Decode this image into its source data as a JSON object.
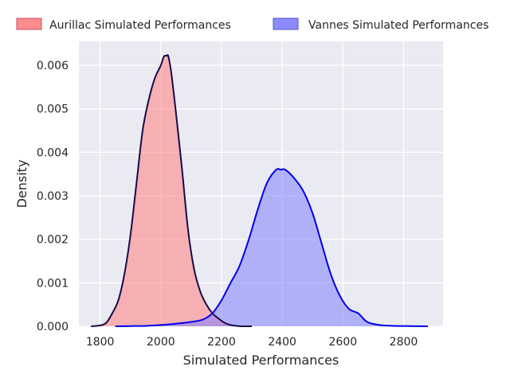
{
  "chart_data": {
    "type": "area",
    "xlabel": "Simulated Performances",
    "ylabel": "Density",
    "xlim": [
      1730,
      2930
    ],
    "ylim": [
      0,
      0.00655
    ],
    "xticks": [
      1800,
      2000,
      2200,
      2400,
      2600,
      2800
    ],
    "xtick_labels": [
      "1800",
      "2000",
      "2200",
      "2400",
      "2600",
      "2800"
    ],
    "yticks": [
      0,
      0.001,
      0.002,
      0.003,
      0.004,
      0.005,
      0.006
    ],
    "ytick_labels": [
      "0.000",
      "0.001",
      "0.002",
      "0.003",
      "0.004",
      "0.005",
      "0.006"
    ],
    "grid": true,
    "legend_position": "top",
    "series": [
      {
        "name": "Aurillac Simulated Performances",
        "fill": "#ff8080",
        "line": "#1a0a4a",
        "fill_opacity": 0.55,
        "x": [
          1770,
          1800,
          1820,
          1840,
          1860,
          1880,
          1900,
          1920,
          1940,
          1960,
          1980,
          2000,
          2010,
          2020,
          2025,
          2035,
          2050,
          2070,
          2090,
          2110,
          2130,
          2150,
          2170,
          2190,
          2210,
          2230,
          2250,
          2270,
          2300
        ],
        "y": [
          0,
          2e-05,
          8e-05,
          0.0003,
          0.0006,
          0.0012,
          0.0021,
          0.0033,
          0.0045,
          0.0052,
          0.0057,
          0.006,
          0.0062,
          0.00622,
          0.0062,
          0.0058,
          0.0049,
          0.0036,
          0.0022,
          0.0013,
          0.0008,
          0.0005,
          0.0003,
          0.00018,
          8e-05,
          3e-05,
          1e-05,
          0,
          0
        ]
      },
      {
        "name": "Vannes Simulated Performances",
        "fill": "#8080ff",
        "line": "#0000ee",
        "fill_opacity": 0.55,
        "x": [
          1850,
          1900,
          1950,
          2000,
          2050,
          2100,
          2140,
          2170,
          2200,
          2230,
          2260,
          2290,
          2320,
          2350,
          2380,
          2395,
          2410,
          2440,
          2470,
          2500,
          2530,
          2560,
          2590,
          2620,
          2650,
          2680,
          2720,
          2770,
          2820,
          2880
        ],
        "y": [
          0,
          5e-06,
          1e-05,
          3e-05,
          6e-05,
          0.0001,
          0.00016,
          0.0003,
          0.0006,
          0.001,
          0.0014,
          0.002,
          0.0027,
          0.0033,
          0.0036,
          0.0036,
          0.0036,
          0.0034,
          0.0031,
          0.0026,
          0.0019,
          0.0012,
          0.0007,
          0.0004,
          0.0003,
          0.0001,
          3e-05,
          1e-05,
          5e-06,
          0
        ]
      }
    ]
  }
}
